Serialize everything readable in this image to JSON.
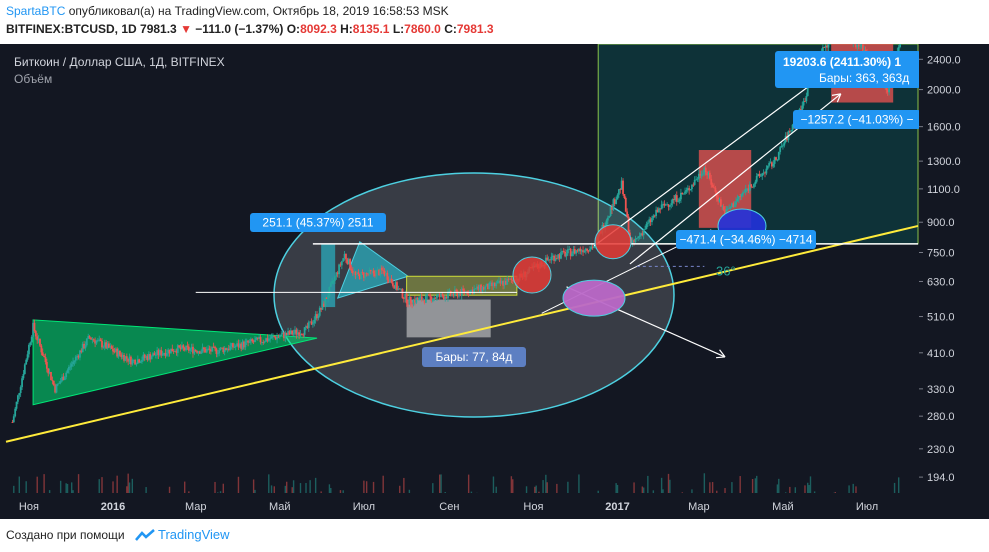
{
  "header": {
    "author": "SpartaBTC",
    "published_text": "опубликовал(а) на TradingView.com, Октябрь 18, 2019 16:58:53 MSK",
    "symbol_full": "BITFINEX:BTCUSD, 1D",
    "last_price": "7981.3",
    "change": "−111.0 (−1.37%)",
    "o_label": "O:",
    "o_value": "8092.3",
    "h_label": "H:",
    "h_value": "8135.1",
    "l_label": "L:",
    "l_value": "7860.0",
    "c_label": "C:",
    "c_value": "7981.3"
  },
  "legend": {
    "symbol_title": "Биткоин / Доллар США, 1Д, BITFINEX",
    "volume_label": "Объём"
  },
  "annotations": {
    "box1_label": "251.1 (45.37%) 2511",
    "bars_label": "Бары: 77, 84д",
    "box3_label": "−471.4 (−34.46%) −4714",
    "box4_label": "19203.6 (2411.30%) 1",
    "box4_bars": "Бары: 363, 363д",
    "box5_label": "−1257.2 (−41.03%) −",
    "angle_label": "36°"
  },
  "footer": {
    "created_with": "Создано при помощи",
    "brand": "TradingView"
  },
  "colors": {
    "background": "#131722",
    "up": "#26a69a",
    "down": "#ef5350",
    "trendline": "#ffeb3b",
    "accent": "#2196f3",
    "triangle": "#00e676"
  },
  "chart_data": {
    "type": "candlestick",
    "scale": "log",
    "grid": false,
    "y_ticks": [
      "2400.0",
      "2000.0",
      "1600.0",
      "1300.0",
      "1100.0",
      "900.0",
      "750.0",
      "630.0",
      "510.0",
      "410.0",
      "330.0",
      "280.0",
      "230.0",
      "194.0"
    ],
    "x_ticks": [
      "Ноя",
      "2016",
      "Мар",
      "Май",
      "Июл",
      "Сен",
      "Ноя",
      "2017",
      "Мар",
      "Май",
      "Июл"
    ],
    "ylim": [
      185,
      2600
    ],
    "price_path": [
      [
        "2015-10-20",
        270
      ],
      [
        "2015-11-04",
        480
      ],
      [
        "2015-11-20",
        330
      ],
      [
        "2015-12-15",
        450
      ],
      [
        "2016-01-15",
        390
      ],
      [
        "2016-02-15",
        420
      ],
      [
        "2016-03-15",
        415
      ],
      [
        "2016-04-15",
        440
      ],
      [
        "2016-05-20",
        470
      ],
      [
        "2016-06-01",
        540
      ],
      [
        "2016-06-17",
        740
      ],
      [
        "2016-06-25",
        650
      ],
      [
        "2016-07-15",
        670
      ],
      [
        "2016-08-02",
        560
      ],
      [
        "2016-08-31",
        580
      ],
      [
        "2016-09-30",
        610
      ],
      [
        "2016-10-20",
        640
      ],
      [
        "2016-11-15",
        730
      ],
      [
        "2016-12-15",
        780
      ],
      [
        "2017-01-04",
        1130
      ],
      [
        "2017-01-11",
        780
      ],
      [
        "2017-02-01",
        980
      ],
      [
        "2017-02-20",
        1080
      ],
      [
        "2017-03-05",
        1250
      ],
      [
        "2017-03-20",
        950
      ],
      [
        "2017-04-05",
        1100
      ],
      [
        "2017-04-25",
        1300
      ],
      [
        "2017-05-15",
        1800
      ],
      [
        "2017-05-25",
        2400
      ],
      [
        "2017-06-10",
        2900
      ],
      [
        "2017-07-01",
        2500
      ],
      [
        "2017-07-16",
        2000
      ],
      [
        "2017-07-25",
        2700
      ]
    ]
  }
}
